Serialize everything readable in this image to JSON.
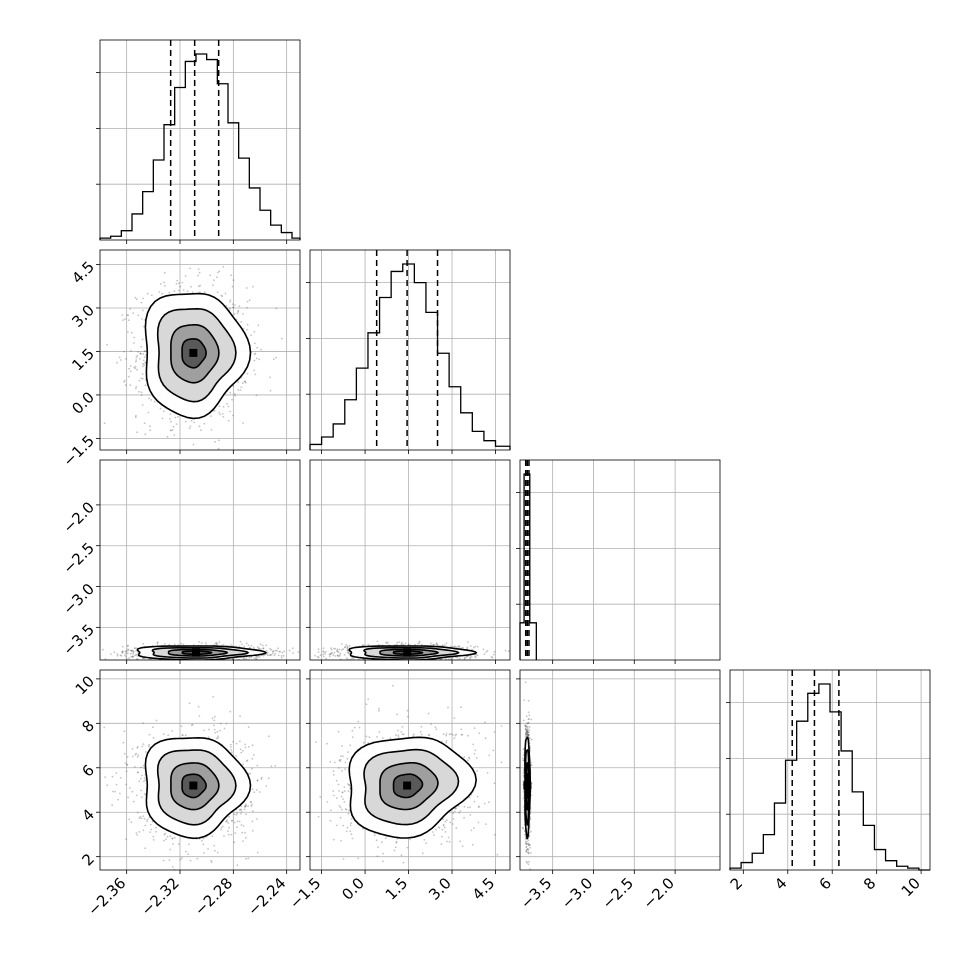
{
  "chart_data": {
    "type": "corner",
    "parameters": 4,
    "grid": true,
    "ticks": {
      "p0": [
        "−2.36",
        "−2.32",
        "−2.28",
        "−2.24"
      ],
      "p1": [
        "−1.5",
        "0.0",
        "1.5",
        "3.0",
        "4.5"
      ],
      "p2_y": [
        "−2.0",
        "−2.5",
        "−3.0",
        "−3.5"
      ],
      "p2_x": [
        "−3.5",
        "−3.0",
        "−2.5",
        "−2.0"
      ],
      "p3": [
        "2",
        "4",
        "6",
        "8",
        "10"
      ]
    },
    "ranges": {
      "p0": [
        -2.38,
        -2.23
      ],
      "p1": [
        -1.9,
        5.0
      ],
      "p2": [
        -3.9,
        -1.45
      ],
      "p3": [
        1.4,
        10.4
      ]
    },
    "marginals": [
      {
        "param": "p0",
        "edges": [
          -2.38,
          -2.372,
          -2.364,
          -2.356,
          -2.348,
          -2.34,
          -2.332,
          -2.324,
          -2.316,
          -2.308,
          -2.3,
          -2.292,
          -2.284,
          -2.276,
          -2.268,
          -2.26,
          -2.252,
          -2.244,
          -2.236,
          -2.23
        ],
        "counts": [
          0.01,
          0.02,
          0.05,
          0.14,
          0.26,
          0.43,
          0.62,
          0.82,
          0.96,
          1.0,
          0.97,
          0.84,
          0.63,
          0.44,
          0.28,
          0.16,
          0.08,
          0.04,
          0.01
        ],
        "quantiles": [
          -2.327,
          -2.309,
          -2.291
        ]
      },
      {
        "param": "p1",
        "edges": [
          -1.9,
          -1.5,
          -1.1,
          -0.7,
          -0.3,
          0.1,
          0.5,
          0.9,
          1.3,
          1.7,
          2.1,
          2.5,
          2.9,
          3.3,
          3.7,
          4.1,
          4.5,
          5.0
        ],
        "counts": [
          0.03,
          0.07,
          0.14,
          0.27,
          0.44,
          0.63,
          0.82,
          0.96,
          1.0,
          0.9,
          0.74,
          0.52,
          0.34,
          0.2,
          0.1,
          0.05,
          0.02
        ],
        "quantiles": [
          0.4,
          1.45,
          2.5
        ]
      },
      {
        "param": "p2",
        "edges": [
          -3.9,
          -3.85,
          -3.78,
          -3.7
        ],
        "counts": [
          0.2,
          1.0,
          0.2
        ],
        "quantiles": [
          -3.83,
          -3.81,
          -3.79
        ]
      },
      {
        "param": "p3",
        "edges": [
          1.4,
          1.9,
          2.4,
          2.9,
          3.4,
          3.9,
          4.4,
          4.9,
          5.4,
          5.9,
          6.4,
          6.9,
          7.4,
          7.9,
          8.4,
          8.9,
          9.4,
          9.9,
          10.4
        ],
        "counts": [
          0.01,
          0.04,
          0.09,
          0.19,
          0.36,
          0.59,
          0.8,
          0.95,
          1.0,
          0.85,
          0.64,
          0.42,
          0.24,
          0.11,
          0.05,
          0.02,
          0.01,
          0.0
        ],
        "quantiles": [
          4.2,
          5.2,
          6.3
        ]
      }
    ],
    "joint": [
      {
        "x": "p0",
        "y": "p1",
        "mean": [
          -2.31,
          1.45
        ],
        "sd": [
          0.018,
          1.0
        ],
        "rho": 0.0
      },
      {
        "x": "p0",
        "y": "p2",
        "mean": [
          -2.308,
          -3.81
        ],
        "sd": [
          0.022,
          0.04
        ],
        "rho": 0.0
      },
      {
        "x": "p1",
        "y": "p2",
        "mean": [
          1.45,
          -3.81
        ],
        "sd": [
          1.0,
          0.04
        ],
        "rho": 0.0
      },
      {
        "x": "p0",
        "y": "p3",
        "mean": [
          -2.31,
          5.2
        ],
        "sd": [
          0.018,
          1.05
        ],
        "rho": 0.0
      },
      {
        "x": "p1",
        "y": "p3",
        "mean": [
          1.45,
          5.2
        ],
        "sd": [
          1.0,
          1.05
        ],
        "rho": 0.1
      },
      {
        "x": "p2",
        "y": "p3",
        "mean": [
          -3.81,
          5.2
        ],
        "sd": [
          0.015,
          1.05
        ],
        "rho": 0.0
      }
    ]
  }
}
